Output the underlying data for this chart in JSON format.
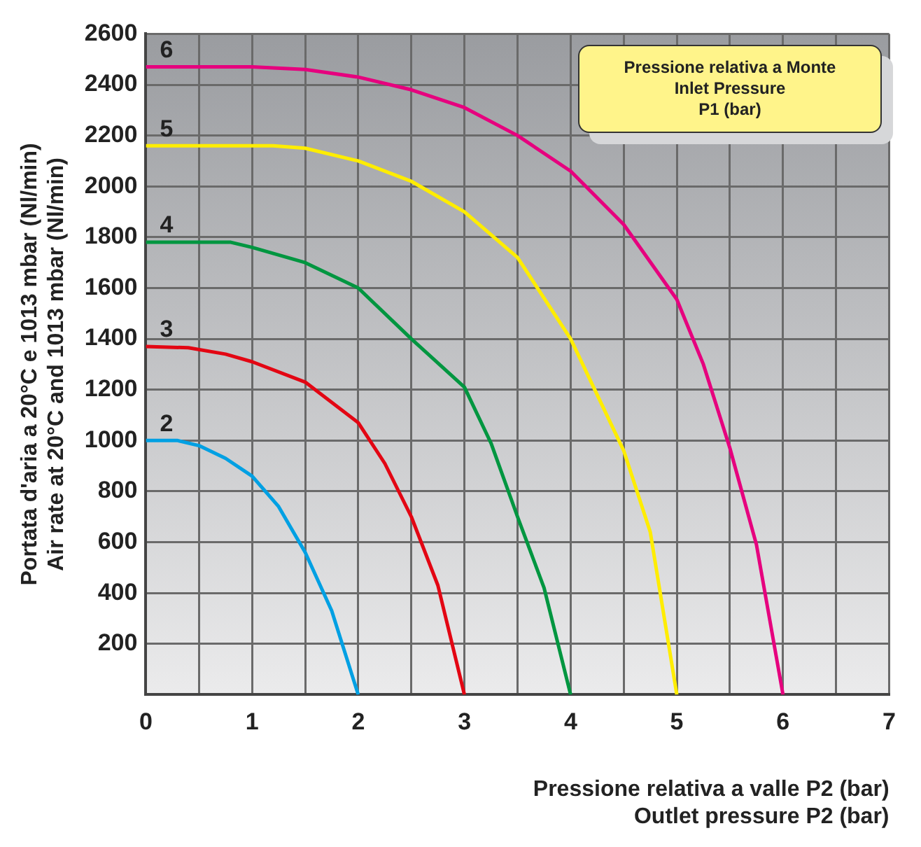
{
  "chart_data": {
    "type": "line",
    "xlabel": "Pressione relativa a valle P2 (bar)\nOutlet pressure P2 (bar)",
    "ylabel": "Portata d'aria a 20°C e 1013 mbar (Nl/min)\nAir rate at 20°C and 1013 mbar (Nl/min)",
    "legend_title": "Pressione relativa  a Monte\nInlet Pressure\nP1 (bar)",
    "xlim": [
      0,
      7
    ],
    "xticks": [
      0,
      {
        "value": 0.5,
        "label": null
      },
      1,
      {
        "value": 1.5,
        "label": null
      },
      2,
      {
        "value": 2.5,
        "label": null
      },
      3,
      {
        "value": 3.5,
        "label": null
      },
      4,
      {
        "value": 4.5,
        "label": null
      },
      5,
      {
        "value": 5.5,
        "label": null
      },
      6,
      {
        "value": 6.5,
        "label": null
      },
      7
    ],
    "ylim": [
      0,
      2600
    ],
    "yticks": [
      200,
      400,
      600,
      800,
      1000,
      1200,
      1400,
      1600,
      1800,
      2000,
      2200,
      2400,
      2600
    ],
    "grid": true,
    "marker": "none",
    "line_style": "solid",
    "series": [
      {
        "name": "2",
        "color": "#00a0e3",
        "x": [
          0,
          0.3,
          0.5,
          0.75,
          1,
          1.25,
          1.5,
          1.75,
          2
        ],
        "values": [
          1000,
          1000,
          980,
          930,
          860,
          740,
          560,
          330,
          0
        ]
      },
      {
        "name": "3",
        "color": "#e30613",
        "x": [
          0,
          0.4,
          0.75,
          1,
          1.5,
          2,
          2.25,
          2.5,
          2.75,
          3
        ],
        "values": [
          1370,
          1365,
          1340,
          1310,
          1230,
          1070,
          910,
          700,
          430,
          0
        ]
      },
      {
        "name": "4",
        "color": "#009640",
        "x": [
          0,
          0.8,
          1,
          1.5,
          2,
          2.5,
          3,
          3.25,
          3.5,
          3.75,
          4
        ],
        "values": [
          1780,
          1780,
          1760,
          1700,
          1600,
          1400,
          1210,
          990,
          700,
          420,
          0
        ]
      },
      {
        "name": "5",
        "color": "#ffed00",
        "x": [
          0,
          1.2,
          1.5,
          2,
          2.5,
          3,
          3.5,
          4,
          4.5,
          4.75,
          5
        ],
        "values": [
          2160,
          2160,
          2150,
          2100,
          2020,
          1900,
          1720,
          1400,
          960,
          640,
          0
        ]
      },
      {
        "name": "6",
        "color": "#e6007e",
        "x": [
          0,
          1,
          1.5,
          2,
          2.5,
          3,
          3.5,
          4,
          4.5,
          5,
          5.25,
          5.5,
          5.75,
          6
        ],
        "values": [
          2470,
          2470,
          2460,
          2430,
          2380,
          2310,
          2200,
          2060,
          1850,
          1555,
          1300,
          970,
          590,
          0
        ]
      }
    ]
  }
}
